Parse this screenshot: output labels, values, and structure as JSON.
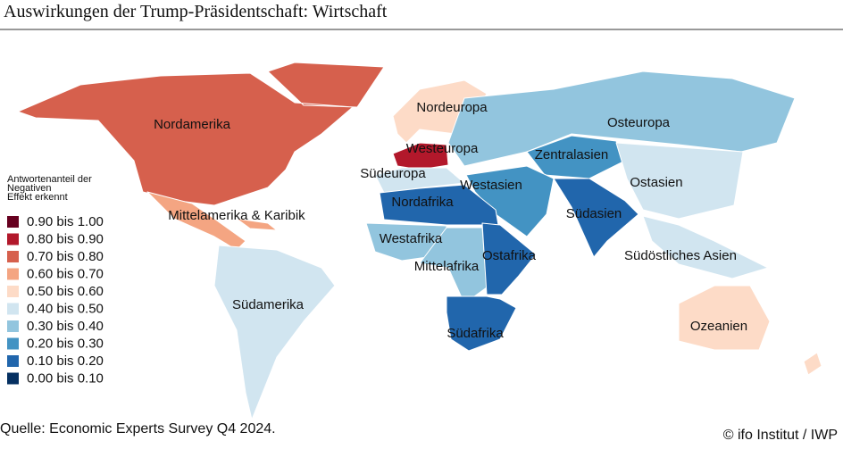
{
  "title": "Auswirkungen der Trump-Präsidentschaft: Wirtschaft",
  "legend": {
    "title_lines": [
      "Antwortenanteil der",
      "Negativen",
      "Effekt erkennt"
    ],
    "items": [
      {
        "label": "0.90 bis 1.00",
        "color": "#67001f"
      },
      {
        "label": "0.80 bis 0.90",
        "color": "#b2182b"
      },
      {
        "label": "0.70 bis 0.80",
        "color": "#d6604d"
      },
      {
        "label": "0.60 bis 0.70",
        "color": "#f4a582"
      },
      {
        "label": "0.50 bis 0.60",
        "color": "#fddbc7"
      },
      {
        "label": "0.40 bis 0.50",
        "color": "#d1e5f0"
      },
      {
        "label": "0.30 bis 0.40",
        "color": "#92c5de"
      },
      {
        "label": "0.20 bis 0.30",
        "color": "#4393c3"
      },
      {
        "label": "0.10 bis 0.20",
        "color": "#2166ac"
      },
      {
        "label": "0.00 bis 0.10",
        "color": "#053061"
      }
    ]
  },
  "regions": [
    {
      "name": "Nordamerika",
      "color": "#d6604d"
    },
    {
      "name": "Mittelamerika & Karibik",
      "color": "#f4a582"
    },
    {
      "name": "Südamerika",
      "color": "#d1e5f0"
    },
    {
      "name": "Nordeuropa",
      "color": "#fddbc7"
    },
    {
      "name": "Westeuropa",
      "color": "#b2182b"
    },
    {
      "name": "Südeuropa",
      "color": "#d1e5f0"
    },
    {
      "name": "Osteuropa",
      "color": "#92c5de"
    },
    {
      "name": "Zentralasien",
      "color": "#4393c3"
    },
    {
      "name": "Westasien",
      "color": "#4393c3"
    },
    {
      "name": "Nordafrika",
      "color": "#2166ac"
    },
    {
      "name": "Westafrika",
      "color": "#92c5de"
    },
    {
      "name": "Mittelafrika",
      "color": "#92c5de"
    },
    {
      "name": "Ostafrika",
      "color": "#2166ac"
    },
    {
      "name": "Südafrika",
      "color": "#2166ac"
    },
    {
      "name": "Südasien",
      "color": "#2166ac"
    },
    {
      "name": "Ostasien",
      "color": "#d1e5f0"
    },
    {
      "name": "Südöstliches Asien",
      "color": "#d1e5f0"
    },
    {
      "name": "Ozeanien",
      "color": "#fddbc7"
    }
  ],
  "source": "Quelle: Economic Experts Survey Q4 2024.",
  "copyright": "© ifo Institut / IWP"
}
